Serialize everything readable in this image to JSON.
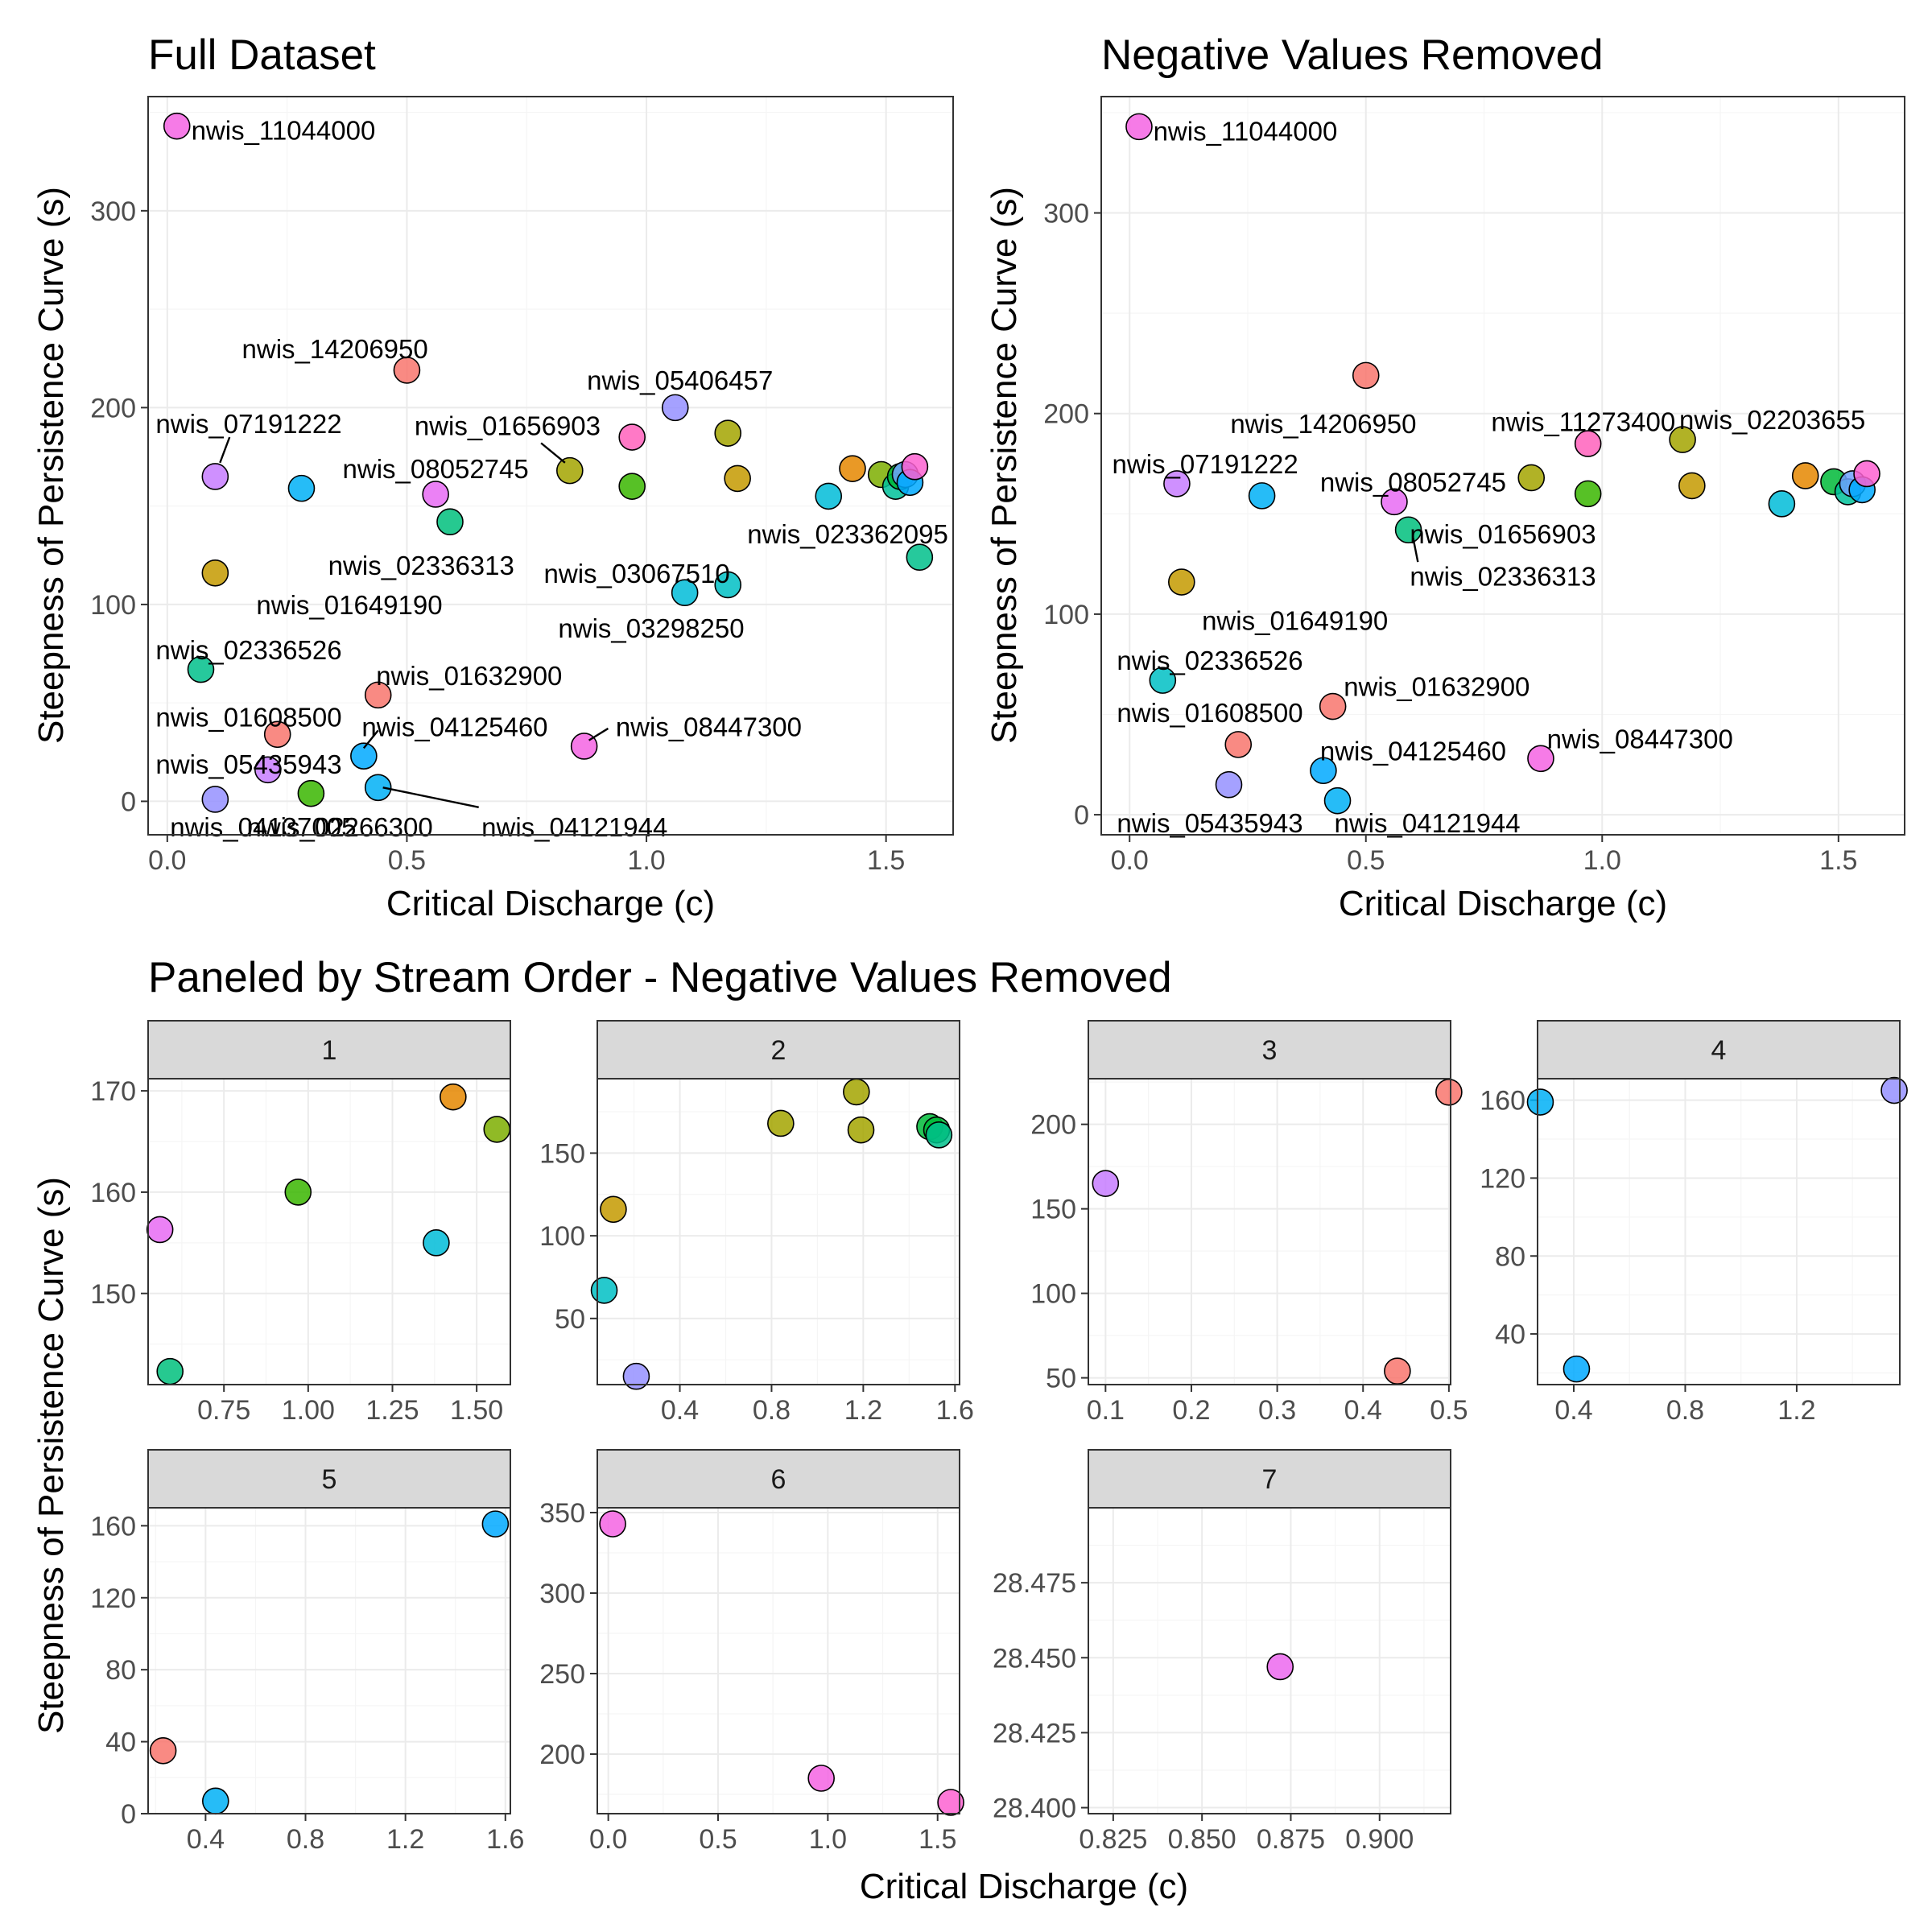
{
  "chart_data": [
    {
      "id": "full",
      "type": "scatter",
      "title": "Full Dataset",
      "xlabel": "Critical Discharge (c)",
      "ylabel": "Steepness of Persistence Curve (s)",
      "xlim": [
        -0.04,
        1.64
      ],
      "ylim": [
        -17,
        358
      ],
      "xticks": [
        0.0,
        0.5,
        1.0,
        1.5
      ],
      "xtick_labels": [
        "0.0",
        "0.5",
        "1.0",
        "1.5"
      ],
      "yticks": [
        0,
        100,
        200,
        300
      ],
      "ytick_labels": [
        "0",
        "100",
        "200",
        "300"
      ],
      "grid": true,
      "points": [
        {
          "x": 0.02,
          "y": 343,
          "color": "#f564e3",
          "label": "nwis_11044000",
          "lx": 0.05,
          "ly": 341,
          "anchor": "start"
        },
        {
          "x": 0.5,
          "y": 219,
          "color": "#f8766d",
          "label": "nwis_14206950",
          "lx": 0.35,
          "ly": 230,
          "anchor": "middle"
        },
        {
          "x": 0.1,
          "y": 165,
          "color": "#c77cff",
          "label": "nwis_07191222",
          "lx": 0.17,
          "ly": 192,
          "anchor": "middle",
          "leader": [
            0.13,
            185,
            0.11,
            172
          ]
        },
        {
          "x": 1.06,
          "y": 200,
          "color": "#9590ff",
          "label": "nwis_05406457",
          "lx": 1.07,
          "ly": 214,
          "anchor": "middle"
        },
        {
          "x": 0.84,
          "y": 168,
          "color": "#a3a500",
          "label": "nwis_01656903",
          "lx": 0.71,
          "ly": 191,
          "anchor": "middle",
          "leader": [
            0.78,
            182,
            0.83,
            172
          ]
        },
        {
          "x": 0.28,
          "y": 159,
          "color": "#00b0f6"
        },
        {
          "x": 0.56,
          "y": 156,
          "color": "#e76bf3",
          "label": "nwis_08052745",
          "lx": 0.56,
          "ly": 169,
          "anchor": "middle"
        },
        {
          "x": 0.59,
          "y": 142,
          "color": "#00bf7d",
          "label": "nwis_02336313",
          "lx": 0.53,
          "ly": 120,
          "anchor": "middle"
        },
        {
          "x": 0.97,
          "y": 185,
          "color": "#ff62bc"
        },
        {
          "x": 0.97,
          "y": 160,
          "color": "#39b600"
        },
        {
          "x": 1.17,
          "y": 187,
          "color": "#a3a500"
        },
        {
          "x": 1.19,
          "y": 164,
          "color": "#c49a00"
        },
        {
          "x": 1.38,
          "y": 155,
          "color": "#00bcd8"
        },
        {
          "x": 1.43,
          "y": 169,
          "color": "#e58700"
        },
        {
          "x": 1.49,
          "y": 166,
          "color": "#7cae00"
        },
        {
          "x": 1.52,
          "y": 160,
          "color": "#00c19a"
        },
        {
          "x": 1.53,
          "y": 165,
          "color": "#00ba38"
        },
        {
          "x": 1.54,
          "y": 166,
          "color": "#6fa1ff"
        },
        {
          "x": 1.55,
          "y": 162,
          "color": "#00a9ff"
        },
        {
          "x": 1.56,
          "y": 170,
          "color": "#fd61d1"
        },
        {
          "x": 1.57,
          "y": 124,
          "color": "#00c08b",
          "label": "nwis_023362095",
          "lx": 1.42,
          "ly": 136,
          "anchor": "middle"
        },
        {
          "x": 0.1,
          "y": 116,
          "color": "#c49a00",
          "label": "nwis_01649190",
          "lx": 0.38,
          "ly": 100,
          "anchor": "middle"
        },
        {
          "x": 1.08,
          "y": 106,
          "color": "#00bcd8",
          "label": "nwis_03067510",
          "lx": 0.98,
          "ly": 116,
          "anchor": "middle"
        },
        {
          "x": 1.17,
          "y": 110,
          "color": "#00bfc4",
          "label": "nwis_03298250",
          "lx": 1.01,
          "ly": 88,
          "anchor": "middle"
        },
        {
          "x": 0.07,
          "y": 67,
          "color": "#00c08b",
          "label": "nwis_02336526",
          "lx": 0.17,
          "ly": 77,
          "anchor": "middle"
        },
        {
          "x": 0.44,
          "y": 54,
          "color": "#f8766d",
          "label": "nwis_01632900",
          "lx": 0.63,
          "ly": 64,
          "anchor": "middle"
        },
        {
          "x": 0.23,
          "y": 34,
          "color": "#f8766d",
          "label": "nwis_01608500",
          "lx": 0.17,
          "ly": 43,
          "anchor": "middle"
        },
        {
          "x": 0.41,
          "y": 23,
          "color": "#00a9ff",
          "label": "nwis_04125460",
          "lx": 0.6,
          "ly": 38,
          "anchor": "middle",
          "leader": [
            0.44,
            36,
            0.41,
            27
          ]
        },
        {
          "x": 0.87,
          "y": 28,
          "color": "#f564e3",
          "label": "nwis_08447300",
          "lx": 1.13,
          "ly": 38,
          "anchor": "middle",
          "leader": [
            0.92,
            37,
            0.88,
            31
          ]
        },
        {
          "x": 0.21,
          "y": 16,
          "color": "#c77cff",
          "label": "nwis_05435943",
          "lx": 0.17,
          "ly": 19,
          "anchor": "middle"
        },
        {
          "x": 0.44,
          "y": 7,
          "color": "#00b0f6",
          "label": "nwis_04121944",
          "lx": 0.85,
          "ly": -13,
          "anchor": "middle",
          "leader": [
            0.65,
            -3,
            0.45,
            7
          ]
        },
        {
          "x": 0.1,
          "y": 1,
          "color": "#9590ff",
          "label": "nwis_04137005",
          "lx": 0.2,
          "ly": -13,
          "anchor": "middle"
        },
        {
          "x": 0.3,
          "y": 4,
          "color": "#39b600",
          "label": "nwis_02266300",
          "lx": 0.36,
          "ly": -13,
          "anchor": "middle"
        }
      ]
    },
    {
      "id": "removed",
      "type": "scatter",
      "title": "Negative Values Removed",
      "xlabel": "Critical Discharge (c)",
      "ylabel": "Steepness of Persistence Curve (s)",
      "xlim": [
        -0.06,
        1.64
      ],
      "ylim": [
        -10,
        358
      ],
      "xticks": [
        0.0,
        0.5,
        1.0,
        1.5
      ],
      "xtick_labels": [
        "0.0",
        "0.5",
        "1.0",
        "1.5"
      ],
      "yticks": [
        0,
        100,
        200,
        300
      ],
      "ytick_labels": [
        "0",
        "100",
        "200",
        "300"
      ],
      "grid": true,
      "points": [
        {
          "x": 0.02,
          "y": 343,
          "color": "#f564e3",
          "label": "nwis_11044000",
          "lx": 0.05,
          "ly": 341,
          "anchor": "start"
        },
        {
          "x": 0.5,
          "y": 219,
          "color": "#f8766d",
          "label": "nwis_14206950",
          "lx": 0.41,
          "ly": 195,
          "anchor": "middle"
        },
        {
          "x": 0.1,
          "y": 165,
          "color": "#c77cff",
          "label": "nwis_07191222",
          "lx": 0.16,
          "ly": 175,
          "anchor": "middle"
        },
        {
          "x": 0.28,
          "y": 159,
          "color": "#00b0f6"
        },
        {
          "x": 0.56,
          "y": 156,
          "color": "#e76bf3",
          "label": "nwis_08052745",
          "lx": 0.6,
          "ly": 166,
          "anchor": "middle"
        },
        {
          "x": 0.59,
          "y": 142,
          "color": "#00bf7d",
          "label": "nwis_02336313",
          "lx": 0.79,
          "ly": 119,
          "anchor": "middle",
          "leader": [
            0.6,
            138,
            0.61,
            126
          ]
        },
        {
          "x": 0.85,
          "y": 168,
          "color": "#a3a500",
          "label": "nwis_01656903",
          "lx": 0.79,
          "ly": 140,
          "anchor": "middle"
        },
        {
          "x": 0.97,
          "y": 185,
          "color": "#ff62bc",
          "label": "nwis_11273400",
          "lx": 0.96,
          "ly": 196,
          "anchor": "middle"
        },
        {
          "x": 0.97,
          "y": 160,
          "color": "#39b600"
        },
        {
          "x": 1.17,
          "y": 187,
          "color": "#a3a500",
          "label": "nwis_02203655",
          "lx": 1.36,
          "ly": 197,
          "anchor": "middle"
        },
        {
          "x": 1.19,
          "y": 164,
          "color": "#c49a00"
        },
        {
          "x": 1.38,
          "y": 155,
          "color": "#00bcd8"
        },
        {
          "x": 1.43,
          "y": 169,
          "color": "#e58700"
        },
        {
          "x": 1.49,
          "y": 166,
          "color": "#00ba38"
        },
        {
          "x": 1.52,
          "y": 161,
          "color": "#00c19a"
        },
        {
          "x": 1.53,
          "y": 165,
          "color": "#6fa1ff"
        },
        {
          "x": 1.55,
          "y": 162,
          "color": "#00a9ff"
        },
        {
          "x": 1.56,
          "y": 170,
          "color": "#fd61d1"
        },
        {
          "x": 0.11,
          "y": 116,
          "color": "#c49a00",
          "label": "nwis_01649190",
          "lx": 0.35,
          "ly": 97,
          "anchor": "middle"
        },
        {
          "x": 0.07,
          "y": 67,
          "color": "#00bfc4",
          "label": "nwis_02336526",
          "lx": 0.17,
          "ly": 77,
          "anchor": "middle"
        },
        {
          "x": 0.43,
          "y": 54,
          "color": "#f8766d",
          "label": "nwis_01632900",
          "lx": 0.65,
          "ly": 64,
          "anchor": "middle"
        },
        {
          "x": 0.23,
          "y": 35,
          "color": "#f8766d",
          "label": "nwis_01608500",
          "lx": 0.17,
          "ly": 51,
          "anchor": "middle"
        },
        {
          "x": 0.41,
          "y": 22,
          "color": "#00a9ff",
          "label": "nwis_04125460",
          "lx": 0.6,
          "ly": 32,
          "anchor": "middle"
        },
        {
          "x": 0.87,
          "y": 28,
          "color": "#f564e3",
          "label": "nwis_08447300",
          "lx": 1.08,
          "ly": 38,
          "anchor": "middle"
        },
        {
          "x": 0.21,
          "y": 15,
          "color": "#9590ff",
          "label": "nwis_05435943",
          "lx": 0.17,
          "ly": -4,
          "anchor": "middle"
        },
        {
          "x": 0.44,
          "y": 7,
          "color": "#00b0f6",
          "label": "nwis_04121944",
          "lx": 0.63,
          "ly": -4,
          "anchor": "middle"
        }
      ]
    }
  ],
  "facets": {
    "title": "Paneled by Stream Order - Negative Values Removed",
    "xlabel": "Critical Discharge (c)",
    "ylabel": "Steepness of Persistence Curve (s)",
    "panels": [
      {
        "strip": "1",
        "xlim": [
          0.525,
          1.6
        ],
        "ylim": [
          141,
          171.2
        ],
        "xticks": [
          0.75,
          1.0,
          1.25,
          1.5
        ],
        "xtick_labels": [
          "0.75",
          "1.00",
          "1.25",
          "1.50"
        ],
        "yticks": [
          150,
          160,
          170
        ],
        "ytick_labels": [
          "150",
          "160",
          "170"
        ],
        "points": [
          {
            "x": 0.56,
            "y": 156.3,
            "color": "#e76bf3"
          },
          {
            "x": 0.59,
            "y": 142.3,
            "color": "#00bf7d"
          },
          {
            "x": 0.97,
            "y": 160.0,
            "color": "#39b600"
          },
          {
            "x": 1.38,
            "y": 155.0,
            "color": "#00bcd8"
          },
          {
            "x": 1.43,
            "y": 169.4,
            "color": "#e58700"
          },
          {
            "x": 1.56,
            "y": 166.2,
            "color": "#7cae00"
          }
        ]
      },
      {
        "strip": "2",
        "xlim": [
          0.04,
          1.62
        ],
        "ylim": [
          10,
          195
        ],
        "xticks": [
          0.4,
          0.8,
          1.2,
          1.6
        ],
        "xtick_labels": [
          "0.4",
          "0.8",
          "1.2",
          "1.6"
        ],
        "yticks": [
          50,
          100,
          150
        ],
        "ytick_labels": [
          "50",
          "100",
          "150"
        ],
        "points": [
          {
            "x": 0.07,
            "y": 67,
            "color": "#00bfc4"
          },
          {
            "x": 0.11,
            "y": 116,
            "color": "#c49a00"
          },
          {
            "x": 0.21,
            "y": 15,
            "color": "#9590ff"
          },
          {
            "x": 0.84,
            "y": 168,
            "color": "#a3a500"
          },
          {
            "x": 1.17,
            "y": 187,
            "color": "#a3a500"
          },
          {
            "x": 1.19,
            "y": 164,
            "color": "#a3a500"
          },
          {
            "x": 1.49,
            "y": 166,
            "color": "#00ba38"
          },
          {
            "x": 1.52,
            "y": 164,
            "color": "#00ba38"
          },
          {
            "x": 1.53,
            "y": 161,
            "color": "#00c08b"
          }
        ]
      },
      {
        "strip": "3",
        "xlim": [
          0.08,
          0.502
        ],
        "ylim": [
          46,
          227
        ],
        "xticks": [
          0.1,
          0.2,
          0.3,
          0.4,
          0.5
        ],
        "xtick_labels": [
          "0.1",
          "0.2",
          "0.3",
          "0.4",
          "0.5"
        ],
        "yticks": [
          50,
          100,
          150,
          200
        ],
        "ytick_labels": [
          "50",
          "100",
          "150",
          "200"
        ],
        "points": [
          {
            "x": 0.1,
            "y": 165,
            "color": "#c77cff"
          },
          {
            "x": 0.5,
            "y": 219,
            "color": "#f8766d"
          },
          {
            "x": 0.44,
            "y": 54,
            "color": "#f8766d"
          }
        ]
      },
      {
        "strip": "4",
        "xlim": [
          0.27,
          1.57
        ],
        "ylim": [
          14,
          171
        ],
        "xticks": [
          0.4,
          0.8,
          1.2
        ],
        "xtick_labels": [
          "0.4",
          "0.8",
          "1.2"
        ],
        "yticks": [
          40,
          80,
          120,
          160
        ],
        "ytick_labels": [
          "40",
          "80",
          "120",
          "160"
        ],
        "points": [
          {
            "x": 0.28,
            "y": 159,
            "color": "#00b0f6"
          },
          {
            "x": 0.41,
            "y": 22,
            "color": "#00a9ff"
          },
          {
            "x": 1.55,
            "y": 165,
            "color": "#9590ff"
          }
        ]
      },
      {
        "strip": "5",
        "xlim": [
          0.17,
          1.62
        ],
        "ylim": [
          0,
          170
        ],
        "xticks": [
          0.4,
          0.8,
          1.2,
          1.6
        ],
        "xtick_labels": [
          "0.4",
          "0.8",
          "1.2",
          "1.6"
        ],
        "yticks": [
          0,
          40,
          80,
          120,
          160
        ],
        "ytick_labels": [
          "0",
          "40",
          "80",
          "120",
          "160"
        ],
        "points": [
          {
            "x": 0.23,
            "y": 35,
            "color": "#f8766d"
          },
          {
            "x": 0.44,
            "y": 7,
            "color": "#00b0f6"
          },
          {
            "x": 1.56,
            "y": 161,
            "color": "#00a9ff"
          }
        ]
      },
      {
        "strip": "6",
        "xlim": [
          -0.05,
          1.6
        ],
        "ylim": [
          163,
          353
        ],
        "xticks": [
          0.0,
          0.5,
          1.0,
          1.5
        ],
        "xtick_labels": [
          "0.0",
          "0.5",
          "1.0",
          "1.5"
        ],
        "yticks": [
          200,
          250,
          300,
          350
        ],
        "ytick_labels": [
          "200",
          "250",
          "300",
          "350"
        ],
        "points": [
          {
            "x": 0.02,
            "y": 343,
            "color": "#f564e3"
          },
          {
            "x": 0.97,
            "y": 185,
            "color": "#f564e3"
          },
          {
            "x": 1.56,
            "y": 170,
            "color": "#fd61d1"
          }
        ]
      },
      {
        "strip": "7",
        "xlim": [
          0.818,
          0.92
        ],
        "ylim": [
          28.398,
          28.5
        ],
        "xticks": [
          0.825,
          0.85,
          0.875,
          0.9
        ],
        "xtick_labels": [
          "0.825",
          "0.850",
          "0.875",
          "0.900"
        ],
        "yticks": [
          28.4,
          28.425,
          28.45,
          28.475
        ],
        "ytick_labels": [
          "28.400",
          "28.425",
          "28.450",
          "28.475"
        ],
        "points": [
          {
            "x": 0.872,
            "y": 28.447,
            "color": "#ec69ef"
          }
        ]
      }
    ]
  }
}
